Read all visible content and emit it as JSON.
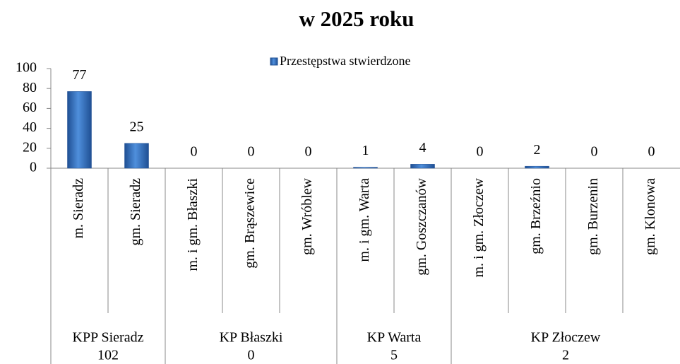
{
  "chart_data": {
    "type": "bar",
    "title": "w 2025 roku",
    "series_name": "Przestępstwa stwierdzone",
    "color": "#2e6bb8",
    "groups": [
      {
        "label": "KPP Sieradz",
        "total": 102,
        "categories": [
          "m. Sieradz",
          "gm. Sieradz"
        ],
        "values": [
          77,
          25
        ]
      },
      {
        "label": "KP Błaszki",
        "total": 0,
        "categories": [
          "m. i gm. Błaszki",
          "gm. Brąszewice",
          "gm. Wróblew"
        ],
        "values": [
          0,
          0,
          0
        ]
      },
      {
        "label": "KP Warta",
        "total": 5,
        "categories": [
          "m. i gm. Warta",
          "gm. Goszczanów"
        ],
        "values": [
          1,
          4
        ]
      },
      {
        "label": "KP Złoczew",
        "total": 2,
        "categories": [
          "m. i gm. Złoczew",
          "gm. Brzeźnio",
          "gm. Burzenin",
          "gm. Klonowa"
        ],
        "values": [
          0,
          2,
          0,
          0
        ]
      }
    ],
    "ylim": [
      0,
      100
    ],
    "yticks": [
      0,
      20,
      40,
      60,
      80,
      100
    ],
    "legend": "top"
  }
}
